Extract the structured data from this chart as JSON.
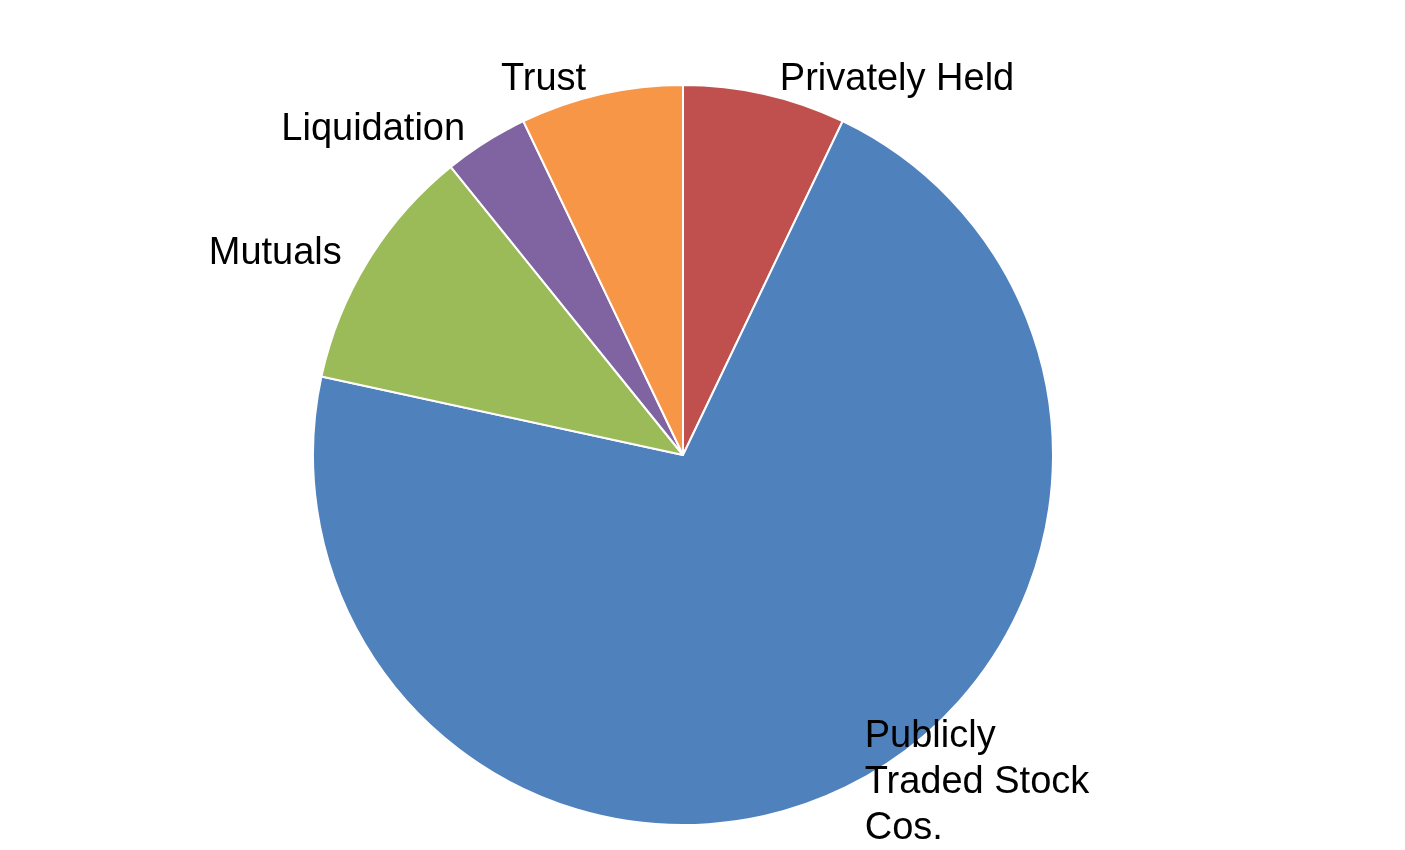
{
  "chart_data": {
    "type": "pie",
    "categories": [
      "Privately Held",
      "Publicly Traded Stock Cos.",
      "Mutuals",
      "Liquidation",
      "Trust"
    ],
    "values": [
      7.1,
      71.3,
      10.8,
      3.7,
      7.1
    ],
    "colors": [
      "#c0504d",
      "#4f81bd",
      "#9bbb59",
      "#8064a2",
      "#f79646"
    ],
    "legend": false
  }
}
